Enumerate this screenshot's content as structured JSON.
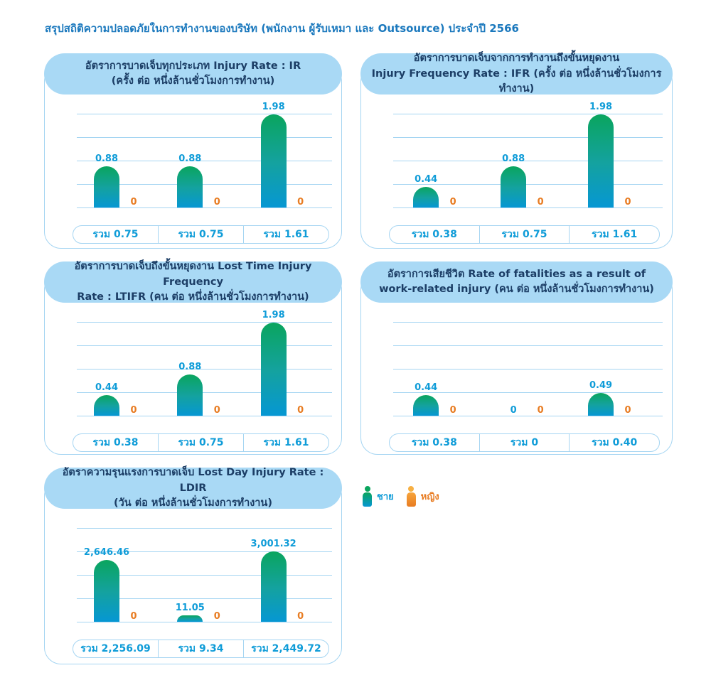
{
  "page_title": "สรุปสถิติความปลอดภัยในการทำงานของบริษัท (พนักงาน ผู้รับเหมา และ Outsource) ประจำปี 2566",
  "colors": {
    "title_blue": "#1a78bd",
    "header_pill_bg": "#a9d9f5",
    "header_text_navy": "#1c3e66",
    "value_label_blue": "#0f9cd8",
    "female_orange": "#e87c22",
    "bar_gradient_top_green": "#0aa55e",
    "bar_gradient_bottom_blue": "#0697d3",
    "panel_border_light_blue": "#a5d5f2"
  },
  "legend": {
    "male_label": "ชาย",
    "female_label": "หญิง",
    "male_icon": "person-icon",
    "female_icon": "person-icon"
  },
  "panels": [
    {
      "id": "ir",
      "title_line1": "อัตราการบาดเจ็บทุกประเภท Injury Rate : IR",
      "title_line2": "(ครั้ง ต่อ หนึ่งล้านชั่วโมงการทำงาน)",
      "ymax": 2,
      "groups": [
        {
          "male": 0.88,
          "male_label": "0.88",
          "female": 0,
          "female_label": "0",
          "total_label": "รวม 0.75"
        },
        {
          "male": 0.88,
          "male_label": "0.88",
          "female": 0,
          "female_label": "0",
          "total_label": "รวม 0.75"
        },
        {
          "male": 1.98,
          "male_label": "1.98",
          "female": 0,
          "female_label": "0",
          "total_label": "รวม 1.61"
        }
      ]
    },
    {
      "id": "ifr",
      "title_line1": "อัตราการบาดเจ็บจากการทำงานถึงขั้นหยุดงาน",
      "title_line2": "Injury Frequency Rate : IFR (ครั้ง ต่อ หนึ่งล้านชั่วโมงการทำงาน)",
      "ymax": 2,
      "groups": [
        {
          "male": 0.44,
          "male_label": "0.44",
          "female": 0,
          "female_label": "0",
          "total_label": "รวม 0.38"
        },
        {
          "male": 0.88,
          "male_label": "0.88",
          "female": 0,
          "female_label": "0",
          "total_label": "รวม 0.75"
        },
        {
          "male": 1.98,
          "male_label": "1.98",
          "female": 0,
          "female_label": "0",
          "total_label": "รวม 1.61"
        }
      ]
    },
    {
      "id": "ltifr",
      "title_line1": "อัตราการบาดเจ็บถึงขั้นหยุดงาน Lost Time Injury Frequency",
      "title_line2": "Rate : LTIFR (คน ต่อ หนึ่งล้านชั่วโมงการทำงาน)",
      "ymax": 2,
      "groups": [
        {
          "male": 0.44,
          "male_label": "0.44",
          "female": 0,
          "female_label": "0",
          "total_label": "รวม 0.38"
        },
        {
          "male": 0.88,
          "male_label": "0.88",
          "female": 0,
          "female_label": "0",
          "total_label": "รวม 0.75"
        },
        {
          "male": 1.98,
          "male_label": "1.98",
          "female": 0,
          "female_label": "0",
          "total_label": "รวม 1.61"
        }
      ]
    },
    {
      "id": "fatalities",
      "title_line1": "อัตราการเสียชีวิต Rate of fatalities as a result of",
      "title_line2": "work-related injury (คน ต่อ หนึ่งล้านชั่วโมงการทำงาน)",
      "ymax": 2,
      "groups": [
        {
          "male": 0.44,
          "male_label": "0.44",
          "female": 0,
          "female_label": "0",
          "total_label": "รวม 0.38"
        },
        {
          "male": 0,
          "male_label": "0",
          "female": 0,
          "female_label": "0",
          "total_label": "รวม 0"
        },
        {
          "male": 0.49,
          "male_label": "0.49",
          "female": 0,
          "female_label": "0",
          "total_label": "รวม 0.40"
        }
      ]
    },
    {
      "id": "ldir",
      "title_line1": "อัตราความรุนแรงการบาดเจ็บ Lost Day Injury Rate : LDIR",
      "title_line2": "(วัน ต่อ หนึ่งล้านชั่วโมงการทำงาน)",
      "ymax": 4000,
      "groups": [
        {
          "male": 2646.46,
          "male_label": "2,646.46",
          "female": 0,
          "female_label": "0",
          "total_label": "รวม 2,256.09"
        },
        {
          "male": 11.05,
          "male_label": "11.05",
          "female": 0,
          "female_label": "0",
          "total_label": "รวม 9.34"
        },
        {
          "male": 3001.32,
          "male_label": "3,001.32",
          "female": 0,
          "female_label": "0",
          "total_label": "รวม 2,449.72"
        }
      ]
    }
  ],
  "chart_data": [
    {
      "type": "bar",
      "title": "อัตราการบาดเจ็บทุกประเภท Injury Rate : IR (ครั้ง ต่อ หนึ่งล้านชั่วโมงการทำงาน)",
      "categories": [
        "",
        "",
        ""
      ],
      "series": [
        {
          "name": "ชาย",
          "values": [
            0.88,
            0.88,
            1.98
          ]
        },
        {
          "name": "หญิง",
          "values": [
            0,
            0,
            0
          ]
        }
      ],
      "totals_row": [
        "รวม 0.75",
        "รวม 0.75",
        "รวม 1.61"
      ],
      "ylim": [
        0,
        2
      ],
      "grid": true,
      "legend_position": "shared-bottom"
    },
    {
      "type": "bar",
      "title": "อัตราการบาดเจ็บจากการทำงานถึงขั้นหยุดงาน Injury Frequency Rate : IFR (ครั้ง ต่อ หนึ่งล้านชั่วโมงการทำงาน)",
      "categories": [
        "",
        "",
        ""
      ],
      "series": [
        {
          "name": "ชาย",
          "values": [
            0.44,
            0.88,
            1.98
          ]
        },
        {
          "name": "หญิง",
          "values": [
            0,
            0,
            0
          ]
        }
      ],
      "totals_row": [
        "รวม 0.38",
        "รวม 0.75",
        "รวม 1.61"
      ],
      "ylim": [
        0,
        2
      ],
      "grid": true,
      "legend_position": "shared-bottom"
    },
    {
      "type": "bar",
      "title": "อัตราการบาดเจ็บถึงขั้นหยุดงาน Lost Time Injury Frequency Rate : LTIFR (คน ต่อ หนึ่งล้านชั่วโมงการทำงาน)",
      "categories": [
        "",
        "",
        ""
      ],
      "series": [
        {
          "name": "ชาย",
          "values": [
            0.44,
            0.88,
            1.98
          ]
        },
        {
          "name": "หญิง",
          "values": [
            0,
            0,
            0
          ]
        }
      ],
      "totals_row": [
        "รวม 0.38",
        "รวม 0.75",
        "รวม 1.61"
      ],
      "ylim": [
        0,
        2
      ],
      "grid": true,
      "legend_position": "shared-bottom"
    },
    {
      "type": "bar",
      "title": "อัตราการเสียชีวิต Rate of fatalities as a result of work-related injury (คน ต่อ หนึ่งล้านชั่วโมงการทำงาน)",
      "categories": [
        "",
        "",
        ""
      ],
      "series": [
        {
          "name": "ชาย",
          "values": [
            0.44,
            0,
            0.49
          ]
        },
        {
          "name": "หญิง",
          "values": [
            0,
            0,
            0
          ]
        }
      ],
      "totals_row": [
        "รวม 0.38",
        "รวม 0",
        "รวม 0.40"
      ],
      "ylim": [
        0,
        2
      ],
      "grid": true,
      "legend_position": "shared-bottom"
    },
    {
      "type": "bar",
      "title": "อัตราความรุนแรงการบาดเจ็บ Lost Day Injury Rate : LDIR (วัน ต่อ หนึ่งล้านชั่วโมงการทำงาน)",
      "categories": [
        "",
        "",
        ""
      ],
      "series": [
        {
          "name": "ชาย",
          "values": [
            2646.46,
            11.05,
            3001.32
          ]
        },
        {
          "name": "หญิง",
          "values": [
            0,
            0,
            0
          ]
        }
      ],
      "totals_row": [
        "รวม 2,256.09",
        "รวม 9.34",
        "รวม 2,449.72"
      ],
      "ylim": [
        0,
        4000
      ],
      "grid": true,
      "legend_position": "shared-bottom"
    }
  ]
}
